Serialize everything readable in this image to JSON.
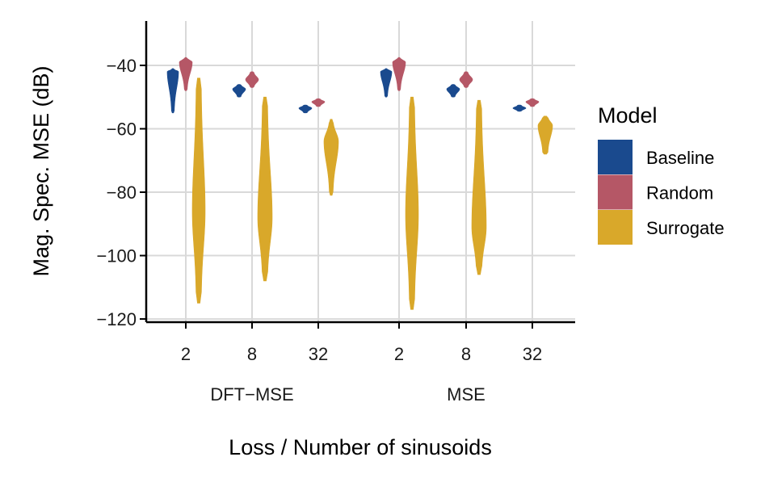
{
  "chart_data": {
    "type": "violin",
    "ylabel": "Mag. Spec. MSE (dB)",
    "xlabel": "Loss / Number of sinusoids",
    "ylim": [
      -121,
      -26
    ],
    "yticks": [
      -40,
      -60,
      -80,
      -100,
      -120
    ],
    "ytick_labels": [
      "−40",
      "−60",
      "−80",
      "−100",
      "−120"
    ],
    "groups": [
      {
        "name": "DFT−MSE",
        "categories": [
          "2",
          "8",
          "32"
        ]
      },
      {
        "name": "MSE",
        "categories": [
          "2",
          "8",
          "32"
        ]
      }
    ],
    "legend": {
      "title": "Model",
      "position": "right",
      "entries": [
        {
          "name": "Baseline",
          "color": "#1a4a8e"
        },
        {
          "name": "Random",
          "color": "#b55766"
        },
        {
          "name": "Surrogate",
          "color": "#d9a82a"
        }
      ]
    },
    "series": [
      {
        "name": "Baseline",
        "color": "#1a4a8e",
        "violins": [
          {
            "group": "DFT−MSE",
            "n": "2",
            "min": -55,
            "max": -41,
            "mode": -42,
            "peak_width": 7,
            "base_width": 1.5
          },
          {
            "group": "DFT−MSE",
            "n": "8",
            "min": -50,
            "max": -46,
            "mode": -47.5,
            "peak_width": 8,
            "base_width": 2
          },
          {
            "group": "DFT−MSE",
            "n": "32",
            "min": -55,
            "max": -52.5,
            "mode": -53.5,
            "peak_width": 8,
            "base_width": 2
          },
          {
            "group": "MSE",
            "n": "2",
            "min": -50,
            "max": -41,
            "mode": -42,
            "peak_width": 7,
            "base_width": 1.5
          },
          {
            "group": "MSE",
            "n": "8",
            "min": -50,
            "max": -46,
            "mode": -47.5,
            "peak_width": 8,
            "base_width": 2
          },
          {
            "group": "MSE",
            "n": "32",
            "min": -54.5,
            "max": -52.5,
            "mode": -53.5,
            "peak_width": 8,
            "base_width": 2
          }
        ]
      },
      {
        "name": "Random",
        "color": "#b55766",
        "violins": [
          {
            "group": "DFT−MSE",
            "n": "2",
            "min": -48,
            "max": -37.5,
            "mode": -39,
            "peak_width": 8,
            "base_width": 1.5
          },
          {
            "group": "DFT−MSE",
            "n": "8",
            "min": -47,
            "max": -42,
            "mode": -44.5,
            "peak_width": 8,
            "base_width": 2
          },
          {
            "group": "DFT−MSE",
            "n": "32",
            "min": -53,
            "max": -50.5,
            "mode": -51.5,
            "peak_width": 8,
            "base_width": 2
          },
          {
            "group": "MSE",
            "n": "2",
            "min": -48,
            "max": -37.5,
            "mode": -39,
            "peak_width": 8,
            "base_width": 1.5
          },
          {
            "group": "MSE",
            "n": "8",
            "min": -47,
            "max": -42,
            "mode": -44.5,
            "peak_width": 8,
            "base_width": 2
          },
          {
            "group": "MSE",
            "n": "32",
            "min": -53,
            "max": -50.5,
            "mode": -51.5,
            "peak_width": 8,
            "base_width": 2
          }
        ]
      },
      {
        "name": "Surrogate",
        "color": "#d9a82a",
        "violins": [
          {
            "group": "DFT−MSE",
            "n": "2",
            "min": -115,
            "max": -44,
            "mode": -86,
            "peak_width": 8,
            "base_width": 3
          },
          {
            "group": "DFT−MSE",
            "n": "8",
            "min": -108,
            "max": -50,
            "mode": -88,
            "peak_width": 9,
            "base_width": 3
          },
          {
            "group": "DFT−MSE",
            "n": "32",
            "min": -81,
            "max": -57,
            "mode": -64,
            "peak_width": 9,
            "base_width": 2
          },
          {
            "group": "MSE",
            "n": "2",
            "min": -117,
            "max": -50,
            "mode": -87,
            "peak_width": 8,
            "base_width": 3
          },
          {
            "group": "MSE",
            "n": "8",
            "min": -106,
            "max": -51,
            "mode": -91,
            "peak_width": 9,
            "base_width": 3
          },
          {
            "group": "MSE",
            "n": "32",
            "min": -68,
            "max": -56,
            "mode": -59,
            "peak_width": 9,
            "base_width": 3
          }
        ]
      }
    ]
  }
}
